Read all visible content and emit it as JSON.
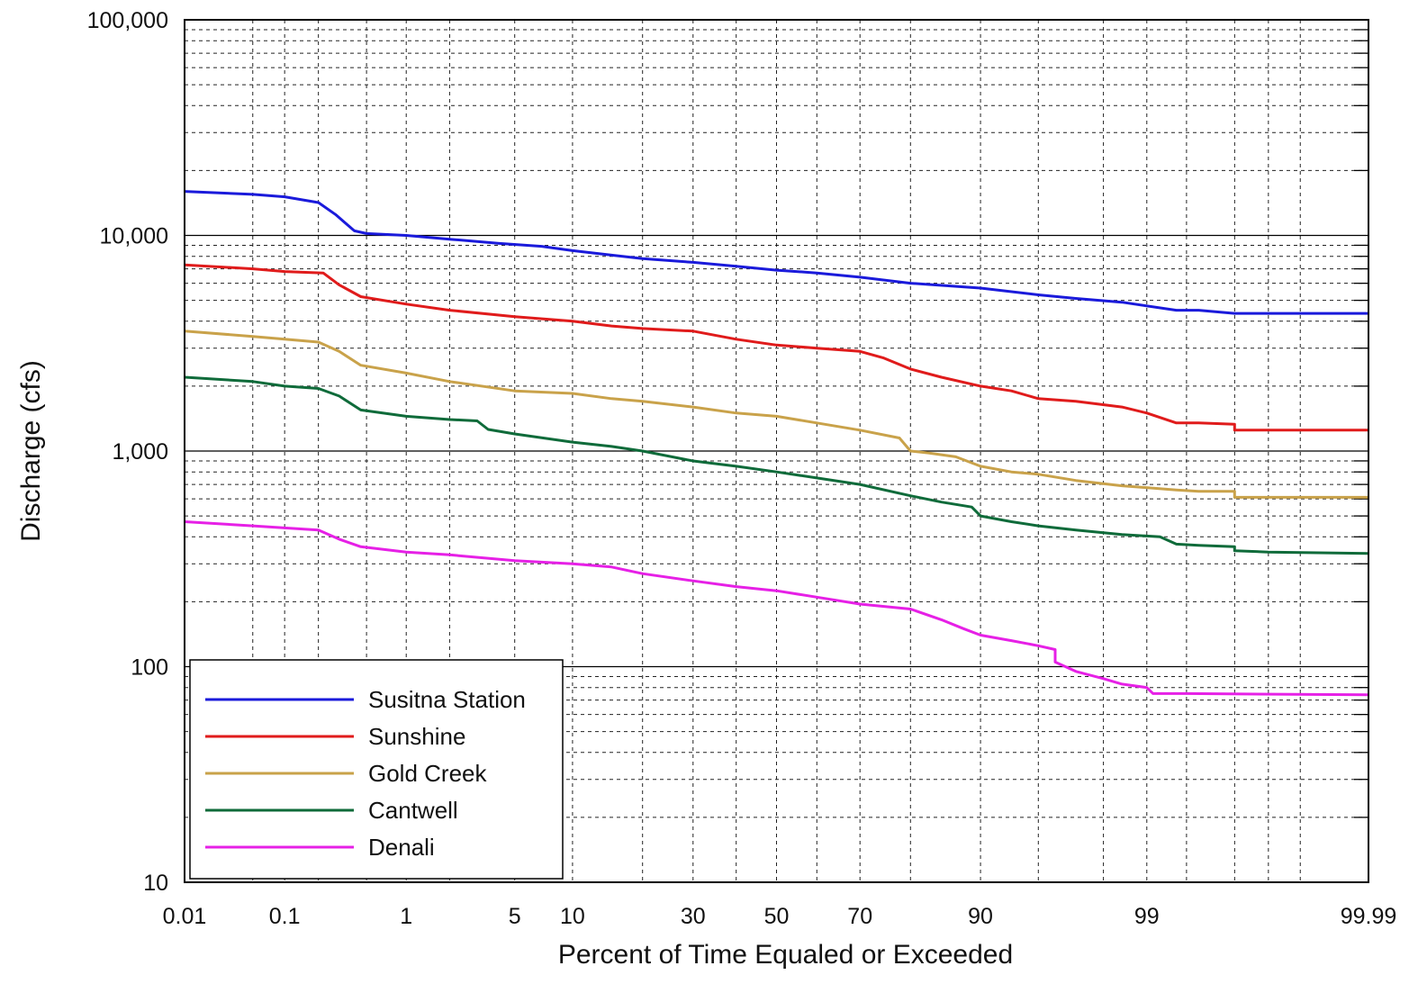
{
  "chart_data": {
    "type": "line",
    "xlabel": "Percent of Time Equaled or Exceeded",
    "ylabel": "Discharge (cfs)",
    "x_scale": "normal-probability",
    "y_scale": "log",
    "xlim": [
      0.01,
      99.99
    ],
    "ylim": [
      10,
      100000
    ],
    "grid": true,
    "legend_position": "bottom-left",
    "x_ticks": [
      {
        "value": 0.01,
        "label": "0.01"
      },
      {
        "value": 0.1,
        "label": "0.1"
      },
      {
        "value": 1,
        "label": "1"
      },
      {
        "value": 5,
        "label": "5"
      },
      {
        "value": 10,
        "label": "10"
      },
      {
        "value": 30,
        "label": "30"
      },
      {
        "value": 50,
        "label": "50"
      },
      {
        "value": 70,
        "label": "70"
      },
      {
        "value": 90,
        "label": "90"
      },
      {
        "value": 99,
        "label": "99"
      },
      {
        "value": 99.99,
        "label": "99.99"
      }
    ],
    "x_gridlines": [
      0.01,
      0.05,
      0.1,
      0.2,
      0.5,
      1,
      2,
      5,
      10,
      20,
      30,
      40,
      50,
      60,
      70,
      80,
      90,
      95,
      98,
      99,
      99.5,
      99.8,
      99.9,
      99.95,
      99.99
    ],
    "y_ticks": [
      {
        "value": 10,
        "label": "10"
      },
      {
        "value": 100,
        "label": "100"
      },
      {
        "value": 1000,
        "label": "1,000"
      },
      {
        "value": 10000,
        "label": "10,000"
      },
      {
        "value": 100000,
        "label": "100,000"
      }
    ],
    "series": [
      {
        "name": "Susitna Station",
        "color": "#1a1adb",
        "points": [
          [
            0.01,
            16000
          ],
          [
            0.05,
            15500
          ],
          [
            0.1,
            15100
          ],
          [
            0.2,
            14200
          ],
          [
            0.28,
            12500
          ],
          [
            0.4,
            10500
          ],
          [
            0.5,
            10200
          ],
          [
            1,
            10000
          ],
          [
            2,
            9600
          ],
          [
            4,
            9200
          ],
          [
            7,
            8900
          ],
          [
            10,
            8500
          ],
          [
            15,
            8100
          ],
          [
            20,
            7800
          ],
          [
            30,
            7500
          ],
          [
            40,
            7200
          ],
          [
            50,
            6900
          ],
          [
            60,
            6700
          ],
          [
            70,
            6400
          ],
          [
            80,
            6000
          ],
          [
            90,
            5700
          ],
          [
            95,
            5300
          ],
          [
            97,
            5100
          ],
          [
            98.5,
            4900
          ],
          [
            99.4,
            4500
          ],
          [
            99.6,
            4500
          ],
          [
            99.8,
            4350
          ],
          [
            99.9,
            4350
          ],
          [
            99.99,
            4350
          ]
        ]
      },
      {
        "name": "Sunshine",
        "color": "#e01b1b",
        "points": [
          [
            0.01,
            7300
          ],
          [
            0.05,
            7000
          ],
          [
            0.1,
            6800
          ],
          [
            0.22,
            6700
          ],
          [
            0.3,
            5900
          ],
          [
            0.45,
            5200
          ],
          [
            1,
            4800
          ],
          [
            2,
            4500
          ],
          [
            5,
            4200
          ],
          [
            10,
            4000
          ],
          [
            15,
            3800
          ],
          [
            20,
            3700
          ],
          [
            30,
            3600
          ],
          [
            40,
            3300
          ],
          [
            50,
            3100
          ],
          [
            60,
            3000
          ],
          [
            70,
            2900
          ],
          [
            75,
            2700
          ],
          [
            80,
            2400
          ],
          [
            85,
            2200
          ],
          [
            90,
            2000
          ],
          [
            93,
            1900
          ],
          [
            95,
            1750
          ],
          [
            97,
            1700
          ],
          [
            98.5,
            1600
          ],
          [
            99,
            1500
          ],
          [
            99.4,
            1350
          ],
          [
            99.6,
            1350
          ],
          [
            99.8,
            1330
          ],
          [
            99.8,
            1250
          ],
          [
            99.9,
            1250
          ],
          [
            99.99,
            1250
          ]
        ]
      },
      {
        "name": "Gold Creek",
        "color": "#c9a24a",
        "points": [
          [
            0.01,
            3600
          ],
          [
            0.05,
            3400
          ],
          [
            0.1,
            3300
          ],
          [
            0.2,
            3200
          ],
          [
            0.3,
            2900
          ],
          [
            0.45,
            2500
          ],
          [
            1,
            2300
          ],
          [
            2,
            2100
          ],
          [
            5,
            1900
          ],
          [
            10,
            1850
          ],
          [
            15,
            1750
          ],
          [
            20,
            1700
          ],
          [
            30,
            1600
          ],
          [
            40,
            1500
          ],
          [
            50,
            1450
          ],
          [
            60,
            1350
          ],
          [
            70,
            1250
          ],
          [
            78,
            1150
          ],
          [
            80,
            1000
          ],
          [
            83,
            980
          ],
          [
            87,
            940
          ],
          [
            90,
            850
          ],
          [
            93,
            800
          ],
          [
            95,
            780
          ],
          [
            97,
            730
          ],
          [
            98.5,
            690
          ],
          [
            99.4,
            660
          ],
          [
            99.6,
            650
          ],
          [
            99.8,
            650
          ],
          [
            99.8,
            610
          ],
          [
            99.9,
            610
          ],
          [
            99.99,
            610
          ]
        ]
      },
      {
        "name": "Cantwell",
        "color": "#0f6b3a",
        "points": [
          [
            0.01,
            2200
          ],
          [
            0.05,
            2100
          ],
          [
            0.1,
            2000
          ],
          [
            0.2,
            1950
          ],
          [
            0.3,
            1800
          ],
          [
            0.45,
            1550
          ],
          [
            1,
            1450
          ],
          [
            2,
            1400
          ],
          [
            3,
            1380
          ],
          [
            3.5,
            1260
          ],
          [
            5,
            1200
          ],
          [
            10,
            1100
          ],
          [
            15,
            1050
          ],
          [
            20,
            1000
          ],
          [
            30,
            900
          ],
          [
            40,
            850
          ],
          [
            50,
            800
          ],
          [
            60,
            750
          ],
          [
            70,
            700
          ],
          [
            80,
            620
          ],
          [
            85,
            580
          ],
          [
            89,
            550
          ],
          [
            90,
            500
          ],
          [
            93,
            470
          ],
          [
            95,
            450
          ],
          [
            97,
            430
          ],
          [
            98.5,
            410
          ],
          [
            99.2,
            400
          ],
          [
            99.4,
            370
          ],
          [
            99.6,
            365
          ],
          [
            99.8,
            360
          ],
          [
            99.8,
            345
          ],
          [
            99.9,
            340
          ],
          [
            99.99,
            335
          ]
        ]
      },
      {
        "name": "Denali",
        "color": "#e620e6",
        "points": [
          [
            0.01,
            470
          ],
          [
            0.05,
            450
          ],
          [
            0.1,
            440
          ],
          [
            0.2,
            430
          ],
          [
            0.3,
            390
          ],
          [
            0.45,
            360
          ],
          [
            1,
            340
          ],
          [
            2,
            330
          ],
          [
            5,
            310
          ],
          [
            10,
            300
          ],
          [
            15,
            290
          ],
          [
            20,
            270
          ],
          [
            30,
            250
          ],
          [
            40,
            235
          ],
          [
            50,
            225
          ],
          [
            60,
            210
          ],
          [
            70,
            195
          ],
          [
            80,
            185
          ],
          [
            85,
            165
          ],
          [
            88,
            150
          ],
          [
            90,
            140
          ],
          [
            93,
            132
          ],
          [
            95,
            125
          ],
          [
            96,
            120
          ],
          [
            96,
            105
          ],
          [
            97,
            95
          ],
          [
            98,
            88
          ],
          [
            98.5,
            83
          ],
          [
            99,
            80
          ],
          [
            99.1,
            75
          ],
          [
            99.5,
            75
          ],
          [
            99.99,
            74
          ]
        ]
      }
    ]
  }
}
